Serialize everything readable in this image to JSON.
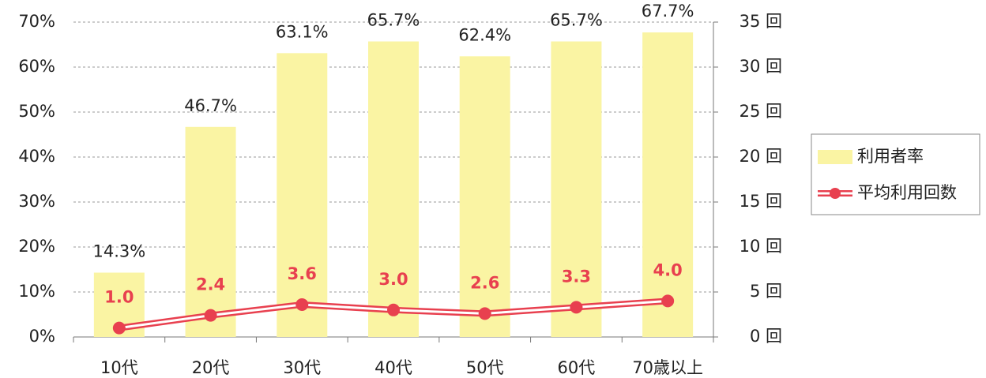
{
  "chart_data": {
    "type": "bar",
    "categories": [
      "10代",
      "20代",
      "30代",
      "40代",
      "50代",
      "60代",
      "70歳以上"
    ],
    "series": [
      {
        "name": "利用者率",
        "color": "#faf4a3",
        "values": [
          14.3,
          46.7,
          63.1,
          65.7,
          62.4,
          65.7,
          67.7
        ],
        "value_labels": [
          "14.3%",
          "46.7%",
          "63.1%",
          "65.7%",
          "62.4%",
          "65.7%",
          "67.7%"
        ]
      },
      {
        "name": "平均利用回数",
        "type": "line",
        "axis": "y2",
        "color": "#e8404f",
        "values": [
          1.0,
          2.4,
          3.6,
          3.0,
          2.6,
          3.3,
          4.0
        ],
        "value_labels": [
          "1.0",
          "2.4",
          "3.6",
          "3.0",
          "2.6",
          "3.3",
          "4.0"
        ]
      }
    ],
    "ylim": [
      0,
      70
    ],
    "yticks": [
      {
        "value": 0,
        "label": "0%"
      },
      {
        "value": 10,
        "label": "10%"
      },
      {
        "value": 20,
        "label": "20%"
      },
      {
        "value": 30,
        "label": "30%"
      },
      {
        "value": 40,
        "label": "40%"
      },
      {
        "value": 50,
        "label": "50%"
      },
      {
        "value": 60,
        "label": "60%"
      },
      {
        "value": 70,
        "label": "70%"
      }
    ],
    "y2lim": [
      0,
      35
    ],
    "y2ticks": [
      {
        "value": 0,
        "label": "0 回"
      },
      {
        "value": 5,
        "label": "5 回"
      },
      {
        "value": 10,
        "label": "10 回"
      },
      {
        "value": 15,
        "label": "15 回"
      },
      {
        "value": 20,
        "label": "20 回"
      },
      {
        "value": 25,
        "label": "25 回"
      },
      {
        "value": 30,
        "label": "30 回"
      },
      {
        "value": 35,
        "label": "35 回"
      }
    ],
    "grid": true,
    "legend": "right"
  }
}
